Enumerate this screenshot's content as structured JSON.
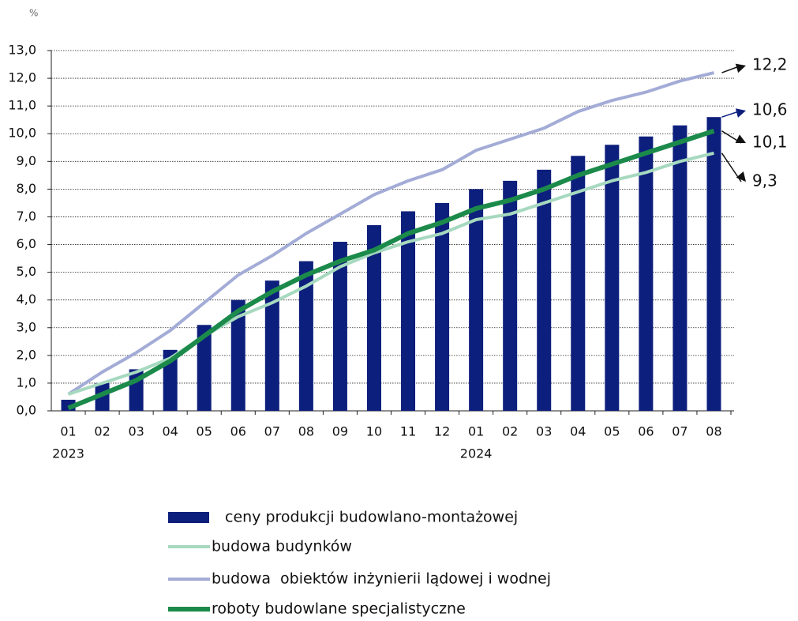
{
  "chart_data": {
    "type": "bar",
    "y_label": "%",
    "categories": [
      "01",
      "02",
      "03",
      "04",
      "05",
      "06",
      "07",
      "08",
      "09",
      "10",
      "11",
      "12",
      "01",
      "02",
      "03",
      "04",
      "05",
      "06",
      "07",
      "08"
    ],
    "years": [
      "2023",
      null,
      null,
      null,
      null,
      null,
      null,
      null,
      null,
      null,
      null,
      null,
      "2024",
      null,
      null,
      null,
      null,
      null,
      null,
      null
    ],
    "ylim": [
      0,
      13
    ],
    "yticks": [
      {
        "value": 0,
        "label": "0,0"
      },
      {
        "value": 1,
        "label": "1,0"
      },
      {
        "value": 2,
        "label": "2,0"
      },
      {
        "value": 3,
        "label": "3,0"
      },
      {
        "value": 4,
        "label": "4,0"
      },
      {
        "value": 5,
        "label": "5,0"
      },
      {
        "value": 6,
        "label": "6,0"
      },
      {
        "value": 7,
        "label": "7,0"
      },
      {
        "value": 8,
        "label": "8,0"
      },
      {
        "value": 9,
        "label": "9,0"
      },
      {
        "value": 10,
        "label": "10,0"
      },
      {
        "value": 11,
        "label": "11,0"
      },
      {
        "value": 12,
        "label": "12,0"
      },
      {
        "value": 13,
        "label": "13,0"
      }
    ],
    "grid": true,
    "series": [
      {
        "name": "ceny produkcji budowlano-montażowej",
        "type": "bar",
        "color": "#0d1f7c",
        "values": [
          0.4,
          1.0,
          1.5,
          2.2,
          3.1,
          4.0,
          4.7,
          5.4,
          6.1,
          6.7,
          7.2,
          7.5,
          8.0,
          8.3,
          8.7,
          9.2,
          9.6,
          9.9,
          10.3,
          10.6
        ],
        "value_labels": [
          null,
          null,
          null,
          null,
          null,
          null,
          null,
          null,
          null,
          null,
          null,
          null,
          null,
          null,
          null,
          null,
          null,
          null,
          null,
          "10,6"
        ]
      },
      {
        "name": "budowa budynków",
        "type": "line",
        "color": "#a6d9bf",
        "values": [
          0.6,
          1.0,
          1.4,
          1.9,
          2.7,
          3.4,
          3.9,
          4.5,
          5.2,
          5.7,
          6.1,
          6.4,
          6.9,
          7.1,
          7.5,
          7.9,
          8.3,
          8.6,
          9.0,
          9.3
        ],
        "value_labels": [
          null,
          null,
          null,
          null,
          null,
          null,
          null,
          null,
          null,
          null,
          null,
          null,
          null,
          null,
          null,
          null,
          null,
          null,
          null,
          "9,3"
        ]
      },
      {
        "name": "budowa  obiektów inżynierii lądowej i wodnej",
        "type": "line",
        "color": "#a3acd6",
        "values": [
          0.6,
          1.4,
          2.1,
          2.9,
          3.9,
          4.9,
          5.6,
          6.4,
          7.1,
          7.8,
          8.3,
          8.7,
          9.4,
          9.8,
          10.2,
          10.8,
          11.2,
          11.5,
          11.9,
          12.2
        ],
        "value_labels": [
          null,
          null,
          null,
          null,
          null,
          null,
          null,
          null,
          null,
          null,
          null,
          null,
          null,
          null,
          null,
          null,
          null,
          null,
          null,
          "12,2"
        ]
      },
      {
        "name": "roboty budowlane specjalistyczne",
        "type": "line",
        "color": "#1b8a4a",
        "values": [
          0.1,
          0.6,
          1.1,
          1.8,
          2.7,
          3.6,
          4.3,
          4.9,
          5.4,
          5.8,
          6.4,
          6.8,
          7.3,
          7.6,
          8.0,
          8.5,
          8.9,
          9.3,
          9.7,
          10.1
        ],
        "value_labels": [
          null,
          null,
          null,
          null,
          null,
          null,
          null,
          null,
          null,
          null,
          null,
          null,
          null,
          null,
          null,
          null,
          null,
          null,
          null,
          "10,1"
        ]
      }
    ]
  }
}
